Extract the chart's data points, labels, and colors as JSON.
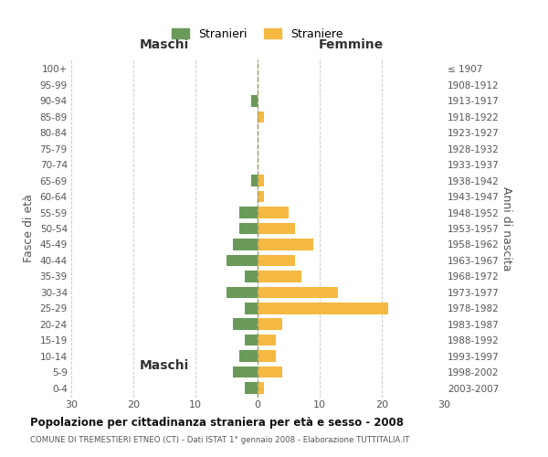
{
  "age_groups": [
    "0-4",
    "5-9",
    "10-14",
    "15-19",
    "20-24",
    "25-29",
    "30-34",
    "35-39",
    "40-44",
    "45-49",
    "50-54",
    "55-59",
    "60-64",
    "65-69",
    "70-74",
    "75-79",
    "80-84",
    "85-89",
    "90-94",
    "95-99",
    "100+"
  ],
  "birth_years": [
    "2003-2007",
    "1998-2002",
    "1993-1997",
    "1988-1992",
    "1983-1987",
    "1978-1982",
    "1973-1977",
    "1968-1972",
    "1963-1967",
    "1958-1962",
    "1953-1957",
    "1948-1952",
    "1943-1947",
    "1938-1942",
    "1933-1937",
    "1928-1932",
    "1923-1927",
    "1918-1922",
    "1913-1917",
    "1908-1912",
    "≤ 1907"
  ],
  "males": [
    2,
    4,
    3,
    2,
    4,
    2,
    5,
    2,
    5,
    4,
    3,
    3,
    0,
    1,
    0,
    0,
    0,
    0,
    1,
    0,
    0
  ],
  "females": [
    1,
    4,
    3,
    3,
    4,
    21,
    13,
    7,
    6,
    9,
    6,
    5,
    1,
    1,
    0,
    0,
    0,
    1,
    0,
    0,
    0
  ],
  "male_color": "#6a9a5a",
  "female_color": "#f5b942",
  "title": "Popolazione per cittadinanza straniera per età e sesso - 2008",
  "subtitle": "COMUNE DI TREMESTIERI ETNEO (CT) - Dati ISTAT 1° gennaio 2008 - Elaborazione TUTTITALIA.IT",
  "ylabel_left": "Fasce di età",
  "ylabel_right": "Anni di nascita",
  "label_maschi": "Maschi",
  "label_femmine": "Femmine",
  "legend_male": "Stranieri",
  "legend_female": "Straniere",
  "xlim": 30,
  "bg_color": "#ffffff",
  "grid_color": "#cccccc",
  "bar_height": 0.72
}
